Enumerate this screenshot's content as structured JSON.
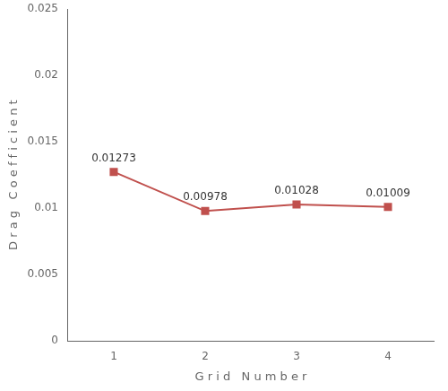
{
  "chart_data": {
    "type": "line",
    "x": [
      1,
      2,
      3,
      4
    ],
    "series": [
      {
        "name": "Drag Coefficient",
        "color": "#c0504d",
        "marker": "square",
        "values": [
          0.01273,
          0.00978,
          0.01028,
          0.01009
        ]
      }
    ],
    "xlabel": "G r i d   N u m b e r",
    "ylabel": "D r a g   C o e f f i c i e n t",
    "xlim": [
      0.5,
      4.5
    ],
    "ylim": [
      0,
      0.025
    ],
    "xticks": [
      1,
      2,
      3,
      4
    ],
    "yticks": [
      0,
      0.005,
      0.01,
      0.015,
      0.02,
      0.025
    ],
    "grid": false,
    "data_labels": true
  }
}
